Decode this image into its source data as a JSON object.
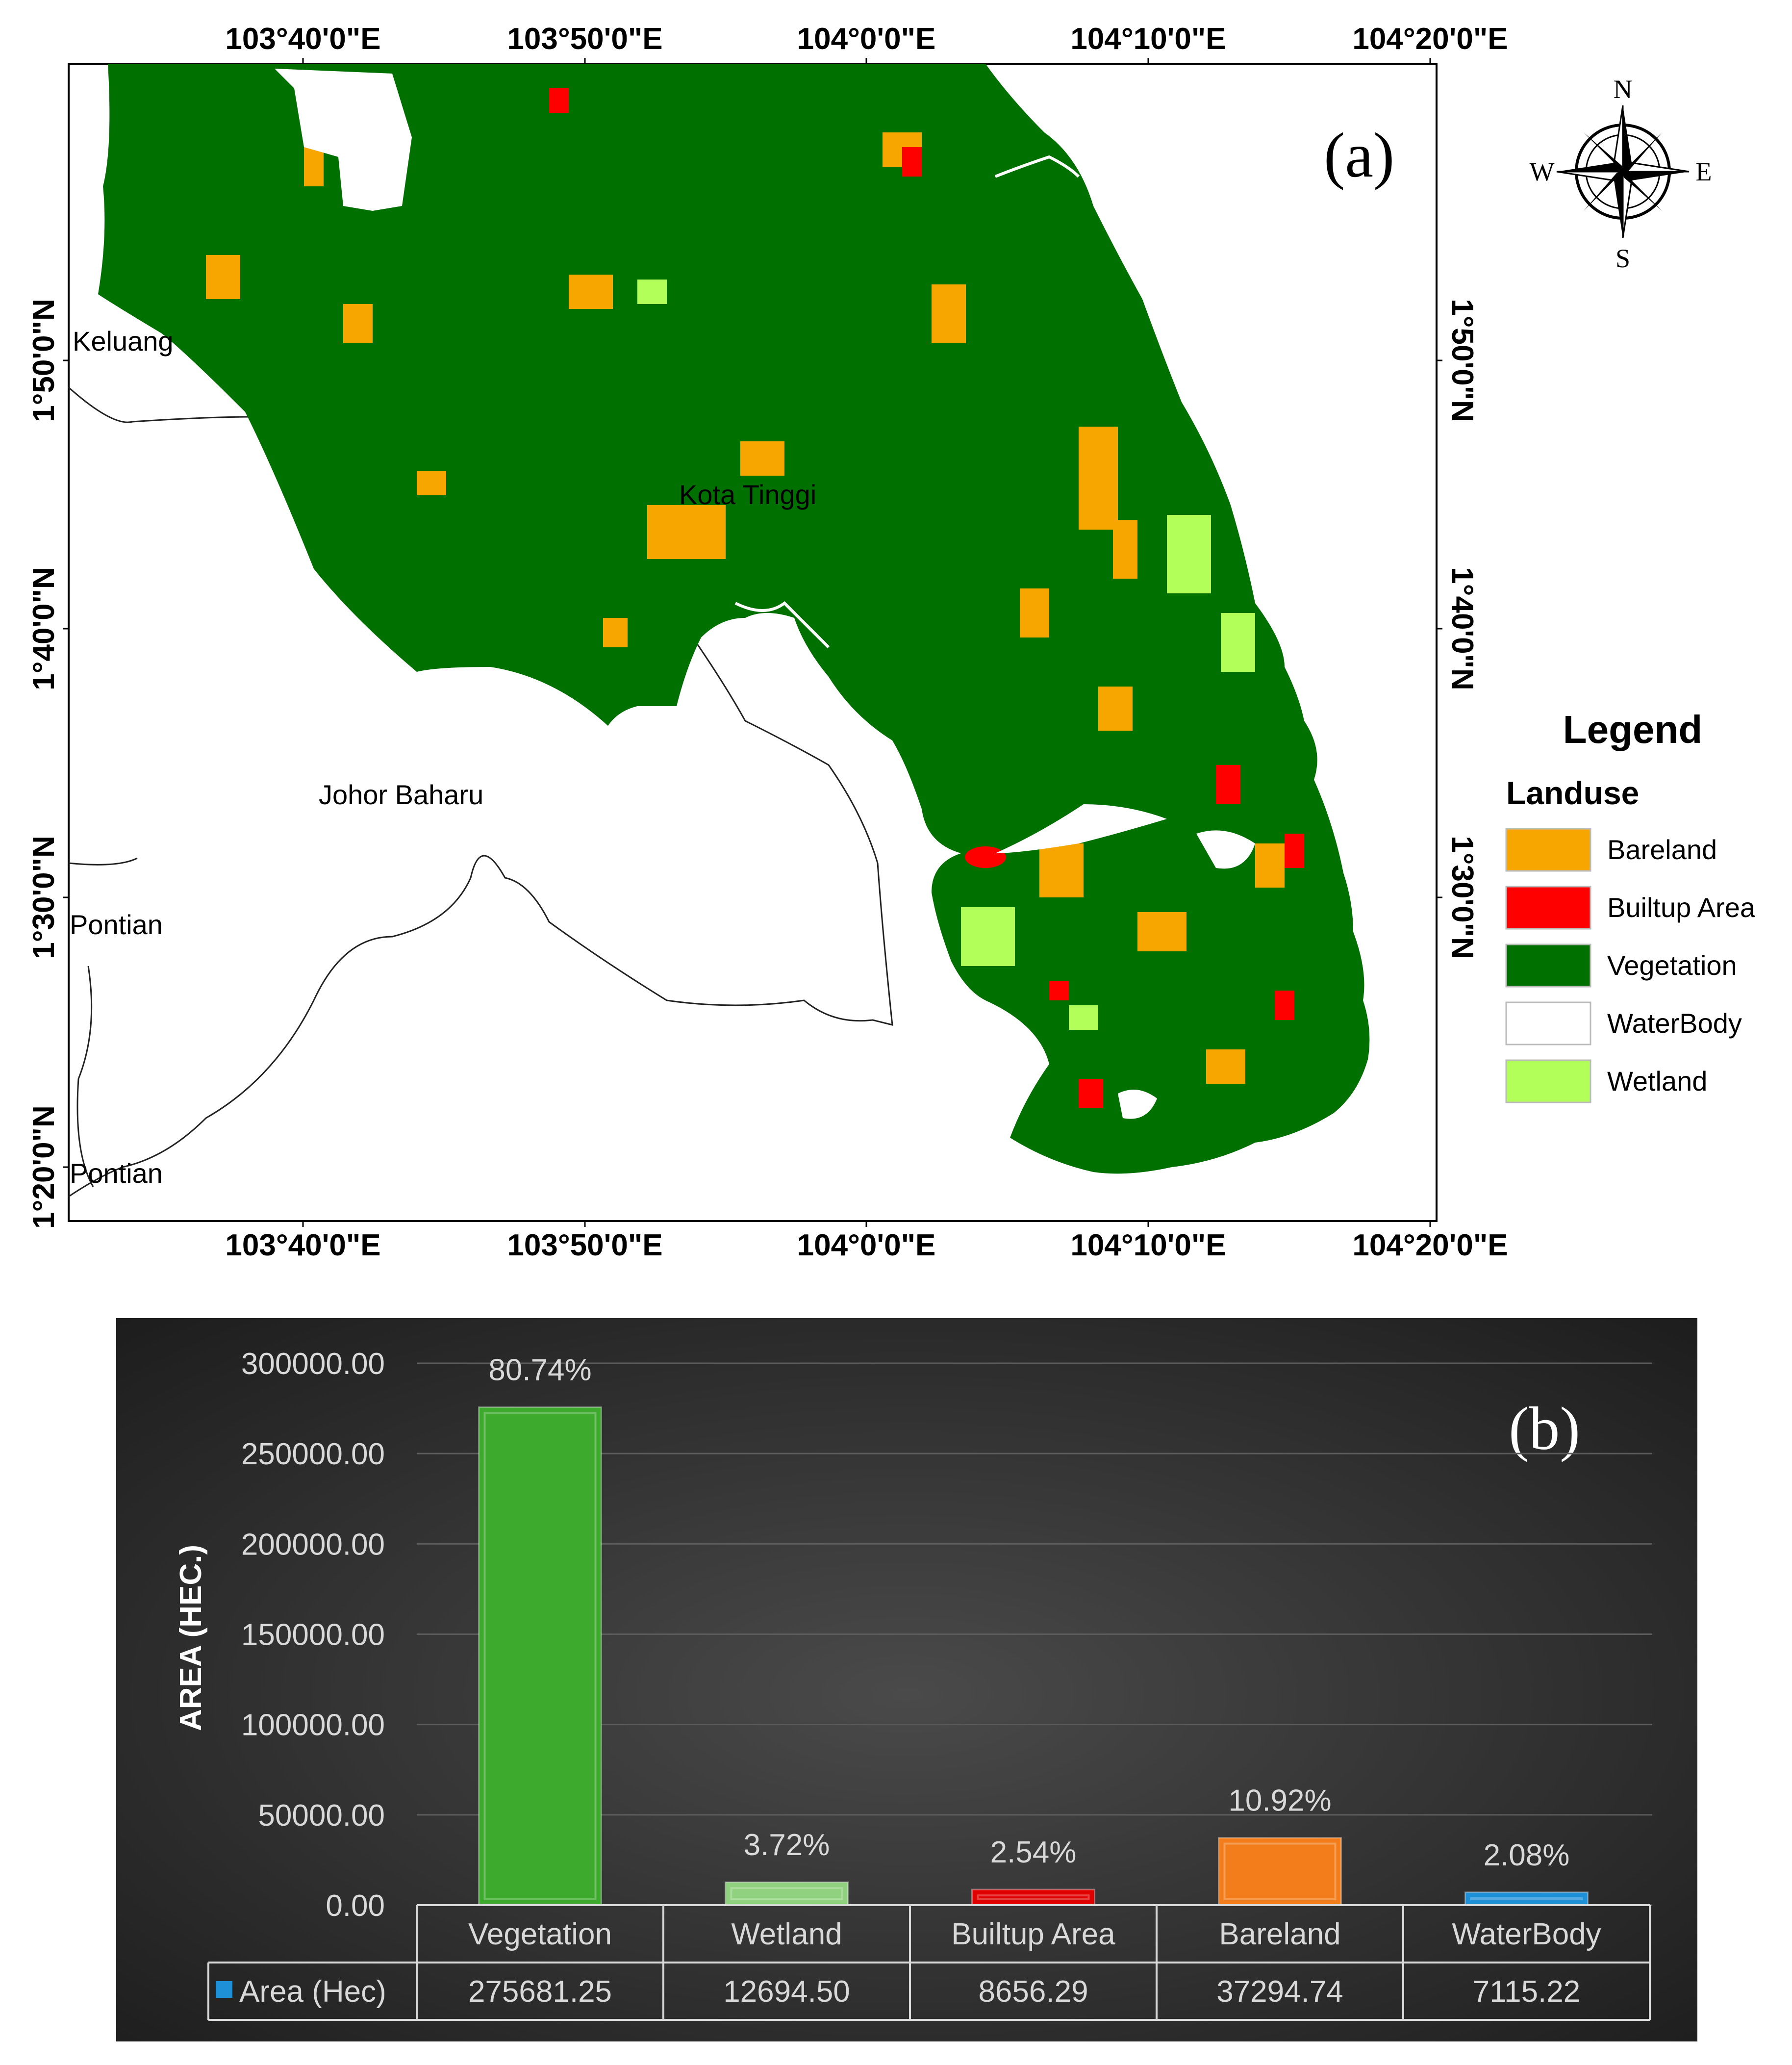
{
  "map": {
    "panel_label": "(a)",
    "coords_top": [
      "103°40'0\"E",
      "103°50'0\"E",
      "104°0'0\"E",
      "104°10'0\"E",
      "104°20'0\"E"
    ],
    "coords_bottom": [
      "103°40'0\"E",
      "103°50'0\"E",
      "104°0'0\"E",
      "104°10'0\"E",
      "104°20'0\"E"
    ],
    "coords_left": [
      "1°50'0\"N",
      "1°40'0\"N",
      "1°30'0\"N",
      "1°20'0\"N"
    ],
    "coords_right": [
      "1°50'0\"N",
      "1°40'0\"N",
      "1°30'0\"N"
    ],
    "places": {
      "keluang": "Keluang",
      "kota_tinggi": "Kota Tinggi",
      "johor_baharu": "Johor Baharu",
      "pontian_1": "Pontian",
      "pontian_2": "Pontian"
    },
    "compass": {
      "n": "N",
      "s": "S",
      "e": "E",
      "w": "W"
    },
    "legend": {
      "title": "Legend",
      "subtitle": "Landuse",
      "items": [
        {
          "label": "Bareland",
          "color": "#f7a600"
        },
        {
          "label": "Builtup Area",
          "color": "#ff0000"
        },
        {
          "label": "Vegetation",
          "color": "#007000"
        },
        {
          "label": "WaterBody",
          "color": "#ffffff"
        },
        {
          "label": "Wetland",
          "color": "#b2ff59"
        }
      ]
    }
  },
  "chart_data": {
    "type": "bar",
    "panel_label": "(b)",
    "ylabel": "AREA (HEC.)",
    "ylim": [
      0,
      300000
    ],
    "yticks": [
      "0.00",
      "50000.00",
      "100000.00",
      "150000.00",
      "200000.00",
      "250000.00",
      "300000.00"
    ],
    "categories": [
      "Vegetation",
      "Wetland",
      "Builtup Area",
      "Bareland",
      "WaterBody"
    ],
    "series": [
      {
        "name": "Area  (Hec)",
        "values": [
          275681.25,
          12694.5,
          8656.29,
          37294.74,
          7115.22
        ],
        "value_labels": [
          "275681.25",
          "12694.50",
          "8656.29",
          "37294.74",
          "7115.22"
        ]
      }
    ],
    "percent_labels": [
      "80.74%",
      "3.72%",
      "2.54%",
      "10.92%",
      "2.08%"
    ],
    "bar_colors": [
      "#3daa2e",
      "#8fd17e",
      "#e00000",
      "#f27d1a",
      "#1e90d8"
    ],
    "legend_marker_color": "#1e90d8",
    "grid": true
  }
}
